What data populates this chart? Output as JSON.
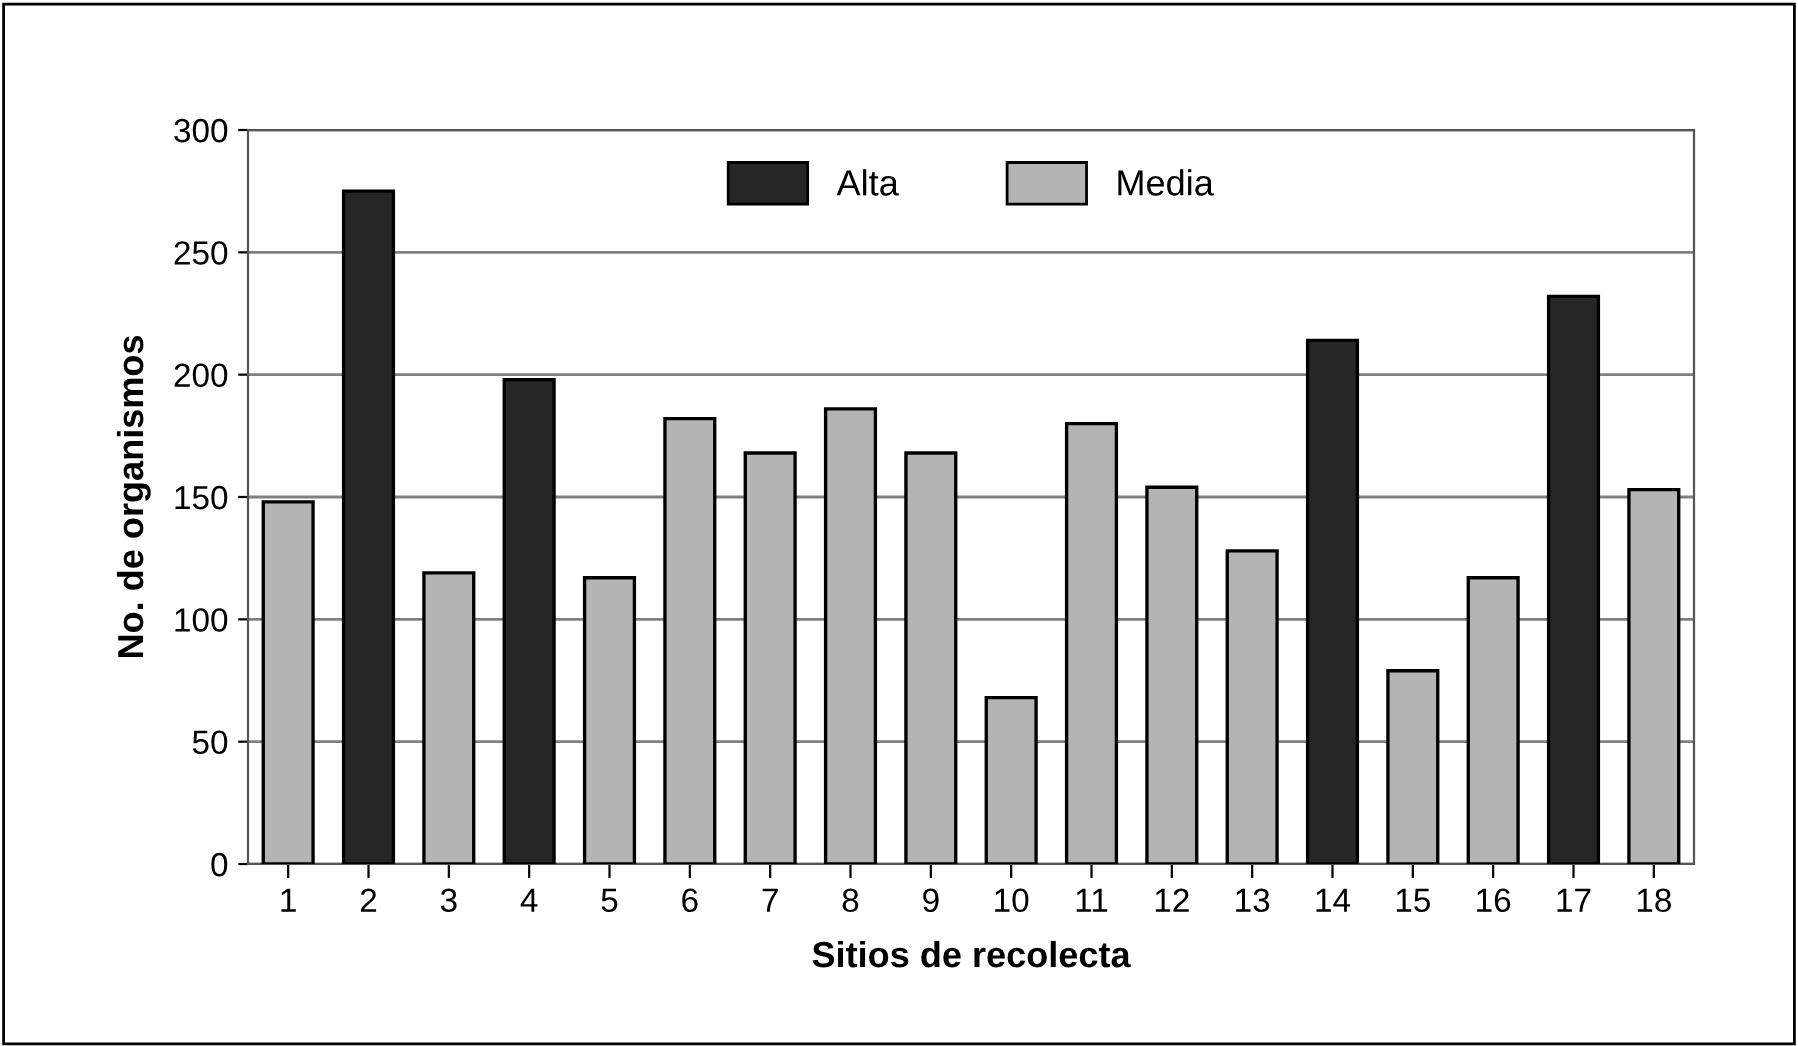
{
  "chart_data": {
    "type": "bar",
    "xlabel": "Sitios de recolecta",
    "ylabel": "No. de organismos",
    "categories": [
      "1",
      "2",
      "3",
      "4",
      "5",
      "6",
      "7",
      "8",
      "9",
      "10",
      "11",
      "12",
      "13",
      "14",
      "15",
      "16",
      "17",
      "18"
    ],
    "series": [
      {
        "name": "Alta",
        "color": "#262626",
        "values": [
          null,
          275,
          null,
          198,
          null,
          null,
          null,
          null,
          null,
          null,
          null,
          null,
          null,
          214,
          null,
          null,
          232,
          null
        ]
      },
      {
        "name": "Media",
        "color": "#b4b4b4",
        "values": [
          148,
          null,
          119,
          null,
          117,
          182,
          168,
          186,
          168,
          68,
          180,
          154,
          128,
          null,
          79,
          117,
          null,
          153
        ]
      }
    ],
    "ylim": [
      0,
      300
    ],
    "yticks": [
      0,
      50,
      100,
      150,
      200,
      250,
      300
    ],
    "grid": "y",
    "legend": "top"
  }
}
